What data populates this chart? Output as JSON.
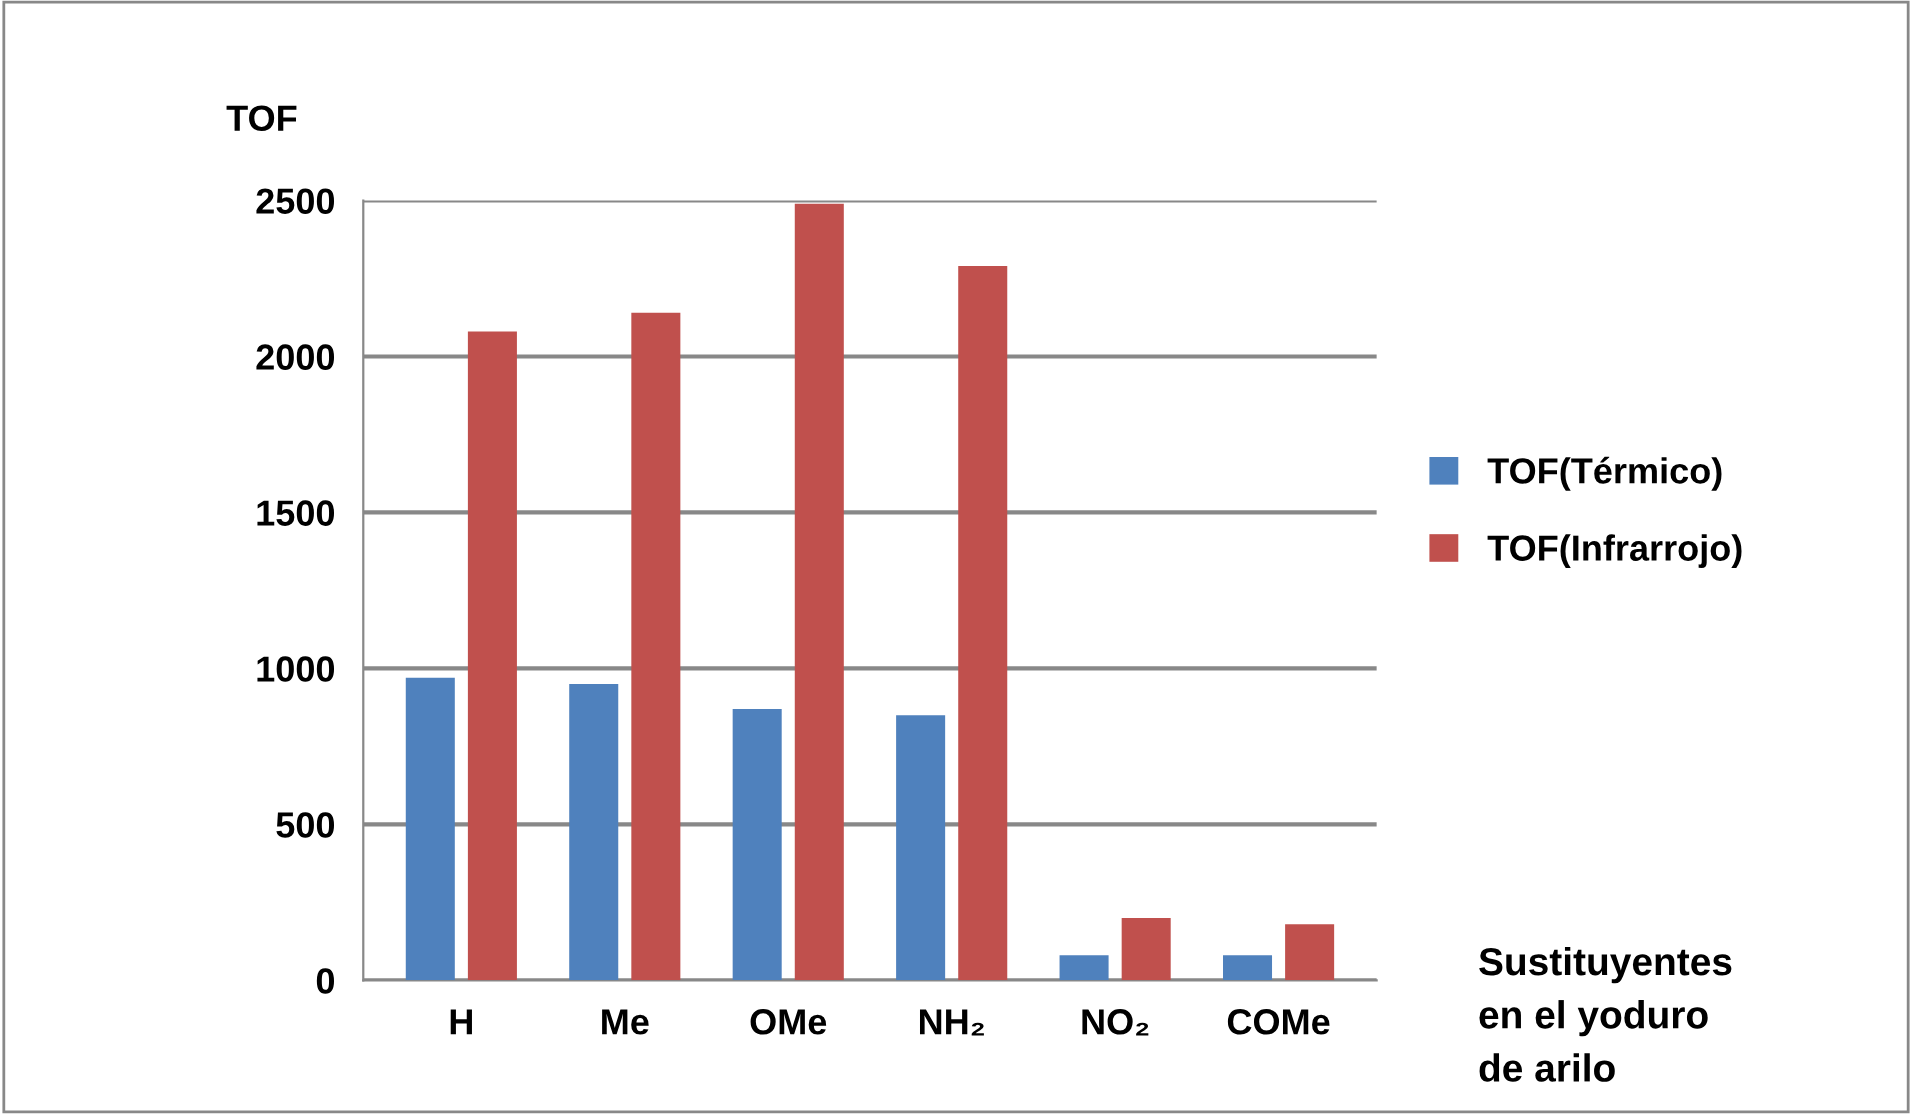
{
  "chart_data": {
    "type": "bar",
    "ylabel": "TOF",
    "xlabel": "Sustituyentes\nen el yoduro\nde arilo",
    "categories": [
      "H",
      "Me",
      "OMe",
      "NH₂",
      "NO₂",
      "COMe"
    ],
    "series": [
      {
        "name": "TOF(Térmico)",
        "color": "#4f81bd",
        "values": [
          970,
          950,
          870,
          850,
          80,
          80
        ]
      },
      {
        "name": "TOF(Infrarrojo)",
        "color": "#c0504d",
        "values": [
          2080,
          2140,
          2490,
          2290,
          200,
          180
        ]
      }
    ],
    "ylim": [
      0,
      2500
    ],
    "yticks": [
      0,
      500,
      1000,
      1500,
      2000,
      2500
    ],
    "grid": "y",
    "legend": "right"
  }
}
